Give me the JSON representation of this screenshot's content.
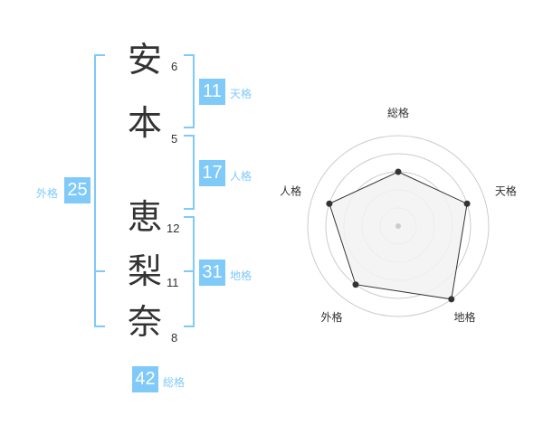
{
  "name_chars": [
    {
      "char": "安",
      "strokes": "6"
    },
    {
      "char": "本",
      "strokes": "5"
    },
    {
      "char": "恵",
      "strokes": "12"
    },
    {
      "char": "梨",
      "strokes": "11"
    },
    {
      "char": "奈",
      "strokes": "8"
    }
  ],
  "kaku": {
    "tenkaku": {
      "label": "天格",
      "value": "11"
    },
    "jinkaku": {
      "label": "人格",
      "value": "17"
    },
    "chikaku": {
      "label": "地格",
      "value": "31"
    },
    "gaikaku": {
      "label": "外格",
      "value": "25"
    },
    "soukaku": {
      "label": "総格",
      "value": "42"
    }
  },
  "colors": {
    "accent": "#7fcaf9",
    "text": "#333333",
    "radar_fill": "#f2f2f2",
    "ring": "#cccccc"
  },
  "chart_data": {
    "type": "radar",
    "categories": [
      "総格",
      "天格",
      "地格",
      "外格",
      "人格"
    ],
    "values": [
      3,
      4,
      5,
      4,
      4
    ],
    "range": [
      0,
      5
    ],
    "rings": 5
  }
}
